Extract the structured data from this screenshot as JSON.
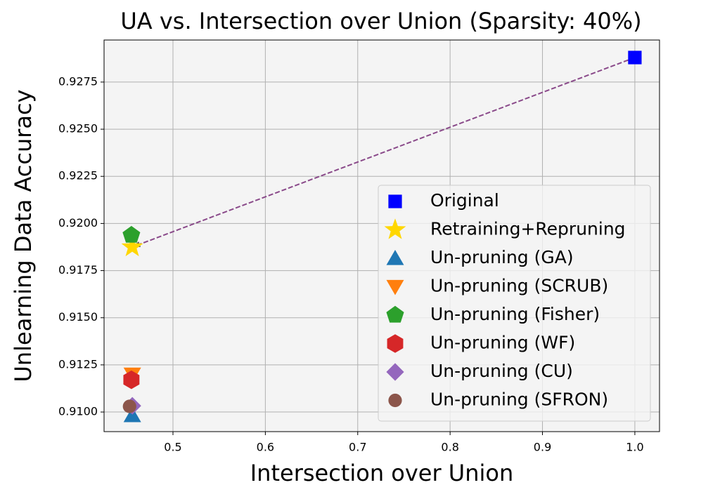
{
  "chart_data": {
    "type": "scatter",
    "title": "UA vs. Intersection over Union (Sparsity: 40%)",
    "x_label": "Intersection over Union",
    "y_label": "Unlearning Data Accuracy",
    "xlim": [
      0.4254,
      1.0267
    ],
    "ylim": [
      0.90896,
      0.92973
    ],
    "xticks": [
      0.5,
      0.6,
      0.7,
      0.8,
      0.9,
      {
        "value": 1,
        "label": "1.0"
      }
    ],
    "yticks": [
      {
        "value": 0.91,
        "label": "0.9100"
      },
      0.9125,
      {
        "value": 0.915,
        "label": "0.9150"
      },
      0.9175,
      {
        "value": 0.92,
        "label": "0.9200"
      },
      0.9225,
      {
        "value": 0.925,
        "label": "0.9250"
      },
      0.9275
    ],
    "grid": true,
    "legend": "lower right",
    "series": [
      {
        "name": "Original",
        "color": "#0000ff",
        "marker": "square",
        "x": [
          1
        ],
        "values": [
          0.9288
        ]
      },
      {
        "name": "Retraining+Repruning",
        "color": "#ffd700",
        "marker": "star",
        "x": [
          0.4559
        ],
        "values": [
          0.91875
        ]
      },
      {
        "name": "Un-pruning (GA)",
        "color": "#1f77b4",
        "marker": "triangle-up",
        "x": [
          0.456
        ],
        "values": [
          0.90982
        ]
      },
      {
        "name": "Un-pruning (SCRUB)",
        "color": "#ff7f0e",
        "marker": "triangle-down",
        "x": [
          0.456
        ],
        "values": [
          0.912
        ]
      },
      {
        "name": "Un-pruning (Fisher)",
        "color": "#2ca02c",
        "marker": "pentagon",
        "x": [
          0.455
        ],
        "values": [
          0.91938
        ]
      },
      {
        "name": "Un-pruning (WF)",
        "color": "#d62728",
        "marker": "hexagon",
        "x": [
          0.455
        ],
        "values": [
          0.91171
        ]
      },
      {
        "name": "Un-pruning (CU)",
        "color": "#9467bd",
        "marker": "diamond",
        "x": [
          0.456
        ],
        "values": [
          0.91033
        ]
      },
      {
        "name": "Un-pruning (SFRON)",
        "color": "#8c564b",
        "marker": "circle",
        "x": [
          0.453
        ],
        "values": [
          0.9103
        ]
      }
    ]
  }
}
